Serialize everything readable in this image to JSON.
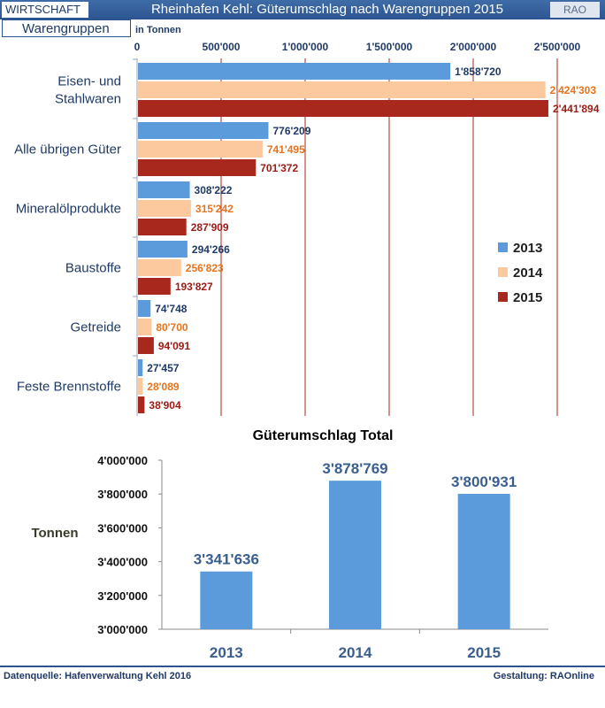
{
  "header": {
    "section": "WIRTSCHAFT",
    "title": "Rheinhafen Kehl: Güterumschlag nach Warengruppen 2015",
    "logo": "RAO"
  },
  "subheader": {
    "label": "Warengruppen"
  },
  "footer": {
    "source": "Datenquelle: Hafenverwaltung Kehl 2016",
    "credit": "Gestaltung: RAOnline"
  },
  "colors": {
    "2013": "#5b9bdc",
    "2014": "#fcc89e",
    "2015": "#a9281e",
    "label2013": "#1f3a66",
    "label2014": "#e8731c",
    "label2015": "#9b1b14"
  },
  "chart_data": [
    {
      "type": "bar",
      "orientation": "horizontal",
      "unit_label": "in Tonnen",
      "xlim": [
        0,
        2500000
      ],
      "ticks": [
        {
          "v": 0,
          "label": "0"
        },
        {
          "v": 500000,
          "label": "500'000"
        },
        {
          "v": 1000000,
          "label": "1'000'000"
        },
        {
          "v": 1500000,
          "label": "1'500'000"
        },
        {
          "v": 2000000,
          "label": "2'000'000"
        },
        {
          "v": 2500000,
          "label": "2'500'000"
        }
      ],
      "categories": [
        {
          "lines": [
            "Eisen- und",
            "Stahlwaren"
          ]
        },
        {
          "lines": [
            "Alle übrigen Güter"
          ]
        },
        {
          "lines": [
            "Mineralölprodukte"
          ]
        },
        {
          "lines": [
            "Baustoffe"
          ]
        },
        {
          "lines": [
            "Getreide"
          ]
        },
        {
          "lines": [
            "Feste Brennstoffe"
          ]
        }
      ],
      "series": [
        {
          "name": "2013",
          "values": [
            1858720,
            776209,
            308222,
            294266,
            74748,
            27457
          ],
          "labels": [
            "1'858'720",
            "776'209",
            "308'222",
            "294'266",
            "74'748",
            "27'457"
          ]
        },
        {
          "name": "2014",
          "values": [
            2424303,
            741495,
            315242,
            256823,
            80700,
            28089
          ],
          "labels": [
            "2'424'303",
            "741'495",
            "315'242",
            "256'823",
            "80'700",
            "28'089"
          ]
        },
        {
          "name": "2015",
          "values": [
            2441894,
            701372,
            287909,
            193827,
            94091,
            38904
          ],
          "labels": [
            "2'441'894",
            "701'372",
            "287'909",
            "193'827",
            "94'091",
            "38'904"
          ]
        }
      ],
      "legend": "right"
    },
    {
      "type": "bar",
      "title": "Güterumschlag Total",
      "ylabel": "Tonnen",
      "ylim": [
        3000000,
        4000000
      ],
      "yticks": [
        {
          "v": 3000000,
          "label": "3'000'000"
        },
        {
          "v": 3200000,
          "label": "3'200'000"
        },
        {
          "v": 3400000,
          "label": "3'400'000"
        },
        {
          "v": 3600000,
          "label": "3'600'000"
        },
        {
          "v": 3800000,
          "label": "3'800'000"
        },
        {
          "v": 4000000,
          "label": "4'000'000"
        }
      ],
      "categories": [
        "2013",
        "2014",
        "2015"
      ],
      "values": [
        3341636,
        3878769,
        3800931
      ],
      "labels": [
        "3'341'636",
        "3'878'769",
        "3'800'931"
      ]
    }
  ]
}
